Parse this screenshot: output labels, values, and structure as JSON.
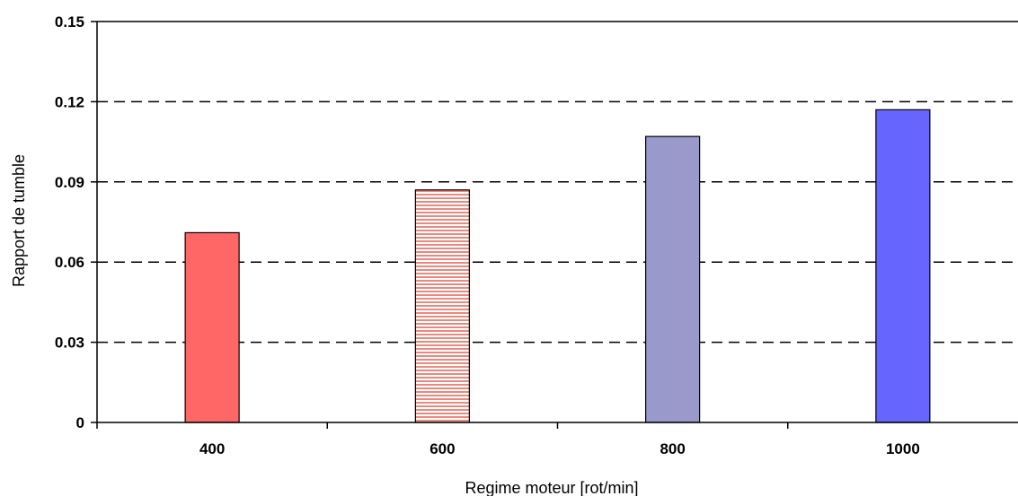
{
  "chart_data": {
    "type": "bar",
    "categories": [
      "400",
      "600",
      "800",
      "1000"
    ],
    "values": [
      0.071,
      0.087,
      0.107,
      0.117
    ],
    "bar_colors": [
      "#ff6666",
      "#f4b8b0",
      "#9999cc",
      "#6666ff"
    ],
    "bar_patterns": [
      "solid",
      "horizontal-stripes",
      "solid",
      "solid"
    ],
    "xlabel": "Regime moteur [rot/min]",
    "ylabel": "Rapport de tumble",
    "ylim": [
      0,
      0.15
    ],
    "yticks": [
      "0",
      "0.03",
      "0.06",
      "0.09",
      "0.12",
      "0.15"
    ],
    "ytick_values": [
      0,
      0.03,
      0.06,
      0.09,
      0.12,
      0.15
    ],
    "grid": "horizontal-dashed",
    "legend": "none"
  }
}
